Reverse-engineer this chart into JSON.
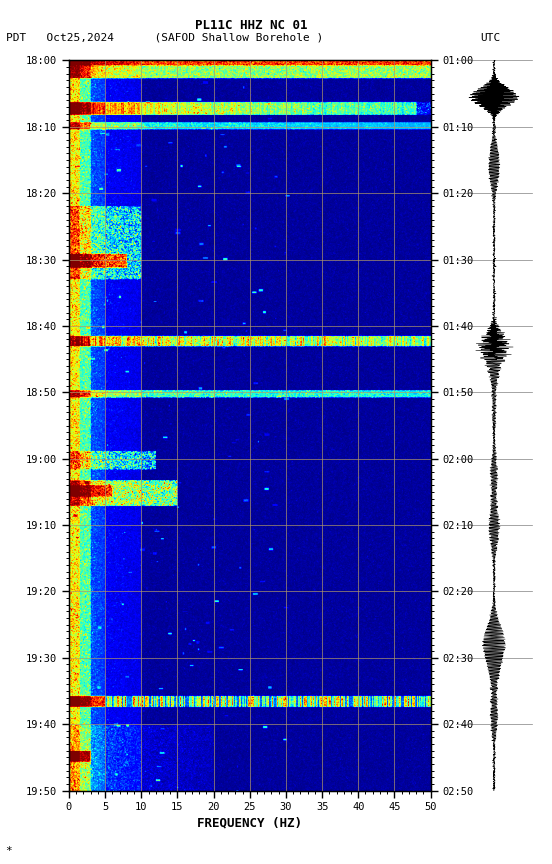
{
  "title_line1": "PL11C HHZ NC 01",
  "title_line2_left": "PDT   Oct25,2024      (SAFOD Shallow Borehole )",
  "title_line2_right": "UTC",
  "xlabel": "FREQUENCY (HZ)",
  "freq_min": 0,
  "freq_max": 50,
  "ytick_pdt": [
    "18:00",
    "18:10",
    "18:20",
    "18:30",
    "18:40",
    "18:50",
    "19:00",
    "19:10",
    "19:20",
    "19:30",
    "19:40",
    "19:50"
  ],
  "ytick_utc": [
    "01:00",
    "01:10",
    "01:20",
    "01:30",
    "01:40",
    "01:50",
    "02:00",
    "02:10",
    "02:20",
    "02:30",
    "02:40",
    "02:50"
  ],
  "xticks": [
    0,
    5,
    10,
    15,
    20,
    25,
    30,
    35,
    40,
    45,
    50
  ],
  "background_color": "#ffffff",
  "colormap": "jet",
  "fig_width": 5.52,
  "fig_height": 8.64,
  "dpi": 100,
  "seed": 42,
  "n_freq": 500,
  "n_time": 1200,
  "grid_color": "#888888",
  "vmin": 0.0,
  "vmax": 1.0
}
